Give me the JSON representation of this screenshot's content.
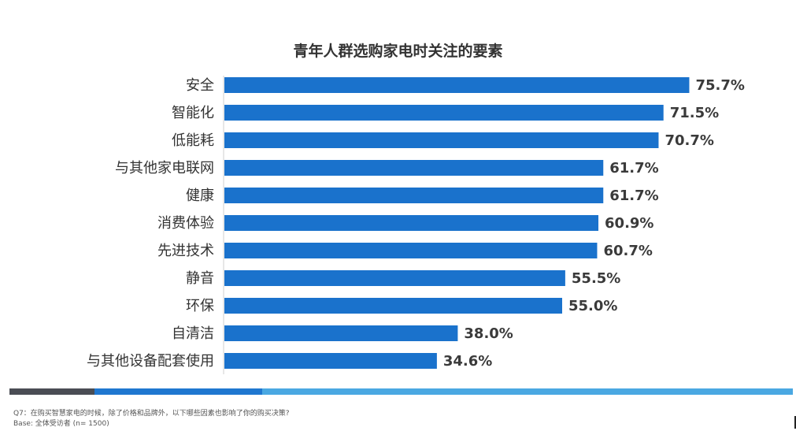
{
  "chart_data": {
    "type": "bar",
    "orientation": "horizontal",
    "title": "青年人群选购家电时关注的要素",
    "categories": [
      "安全",
      "智能化",
      "低能耗",
      "与其他家电联网",
      "健康",
      "消费体验",
      "先进技术",
      "静音",
      "环保",
      "自清洁",
      "与其他设备配套使用"
    ],
    "values": [
      75.7,
      71.5,
      70.7,
      61.7,
      61.7,
      60.9,
      60.7,
      55.5,
      55.0,
      38.0,
      34.6
    ],
    "value_labels": [
      "75.7%",
      "71.5%",
      "70.7%",
      "61.7%",
      "61.7%",
      "60.9%",
      "60.7%",
      "55.5%",
      "55.0%",
      "38.0%",
      "34.6%"
    ],
    "unit": "%",
    "xlim": [
      0,
      100
    ],
    "grid": false,
    "legend": "none",
    "bar_color": "#1a72cc"
  },
  "footnotes": {
    "question": "Q7：在购买智慧家电的时候，除了价格和品牌外，以下哪些因素也影响了你的购买决策?",
    "base": "Base: 全体受访者   (n= 1500)"
  },
  "colors": {
    "band_dark": "#4a4d54",
    "band_mid": "#1f77d0",
    "band_light": "#4aa8e2"
  }
}
